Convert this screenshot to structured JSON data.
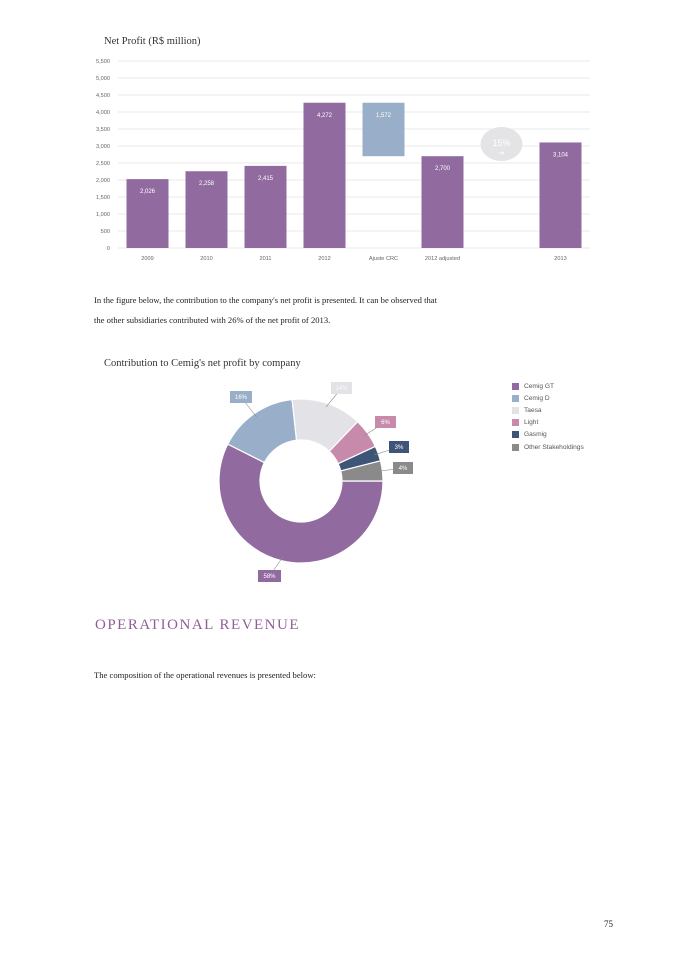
{
  "colors": {
    "purple": "#916b9f",
    "light_blue": "#99aec8",
    "navy": "#3f5577",
    "pink": "#c88aaa",
    "light_gray": "#e3e3e7",
    "gray": "#8a8a8a",
    "heading": "#8e5f95"
  },
  "chart_data": [
    {
      "type": "bar",
      "title": "Net Profit (R$ million)",
      "categories": [
        "2009",
        "2010",
        "2011",
        "2012",
        "Ajuste CRC",
        "2012 adjusted",
        "",
        "2013"
      ],
      "values": [
        2026,
        2258,
        2415,
        4272,
        1572,
        2700,
        null,
        3104
      ],
      "data_labels": [
        "2,026",
        "2,258",
        "2,415",
        "4,272",
        "1,572",
        "2,700",
        "",
        "3,104"
      ],
      "floating_bar": {
        "category": "Ajuste CRC",
        "from": 2700,
        "to": 4272
      },
      "growth_badge": {
        "label": "15%",
        "icon": "arrow-right-icon"
      },
      "yticks": [
        "0",
        "500",
        "1,000",
        "1,500",
        "2,000",
        "2,500",
        "3,000",
        "3,500",
        "4,000",
        "4,500",
        "5,000",
        "5,500"
      ],
      "ylim": [
        0,
        5500
      ],
      "grid": true
    },
    {
      "type": "pie",
      "title": "Contribution to Cemig's net profit by company",
      "donut": true,
      "labels": [
        "Cemig GT",
        "Cemig D",
        "Taesa",
        "Light",
        "Gasmig",
        "Other Stakeholdings"
      ],
      "values": [
        58,
        16,
        14,
        6,
        3,
        4
      ],
      "data_labels": [
        "58%",
        "16%",
        "14%",
        "6%",
        "3%",
        "4%"
      ],
      "legend_position": "right"
    }
  ],
  "paragraphs": {
    "line1": "In the figure below, the contribution to the company's net profit is presented. It can be observed that",
    "line2": "the other subsidiaries contributed with 26% of the net profit of 2013.",
    "operational": "The composition of the operational revenues is presented below:"
  },
  "section_heading": "OPERATIONAL REVENUE",
  "page_number": "75"
}
